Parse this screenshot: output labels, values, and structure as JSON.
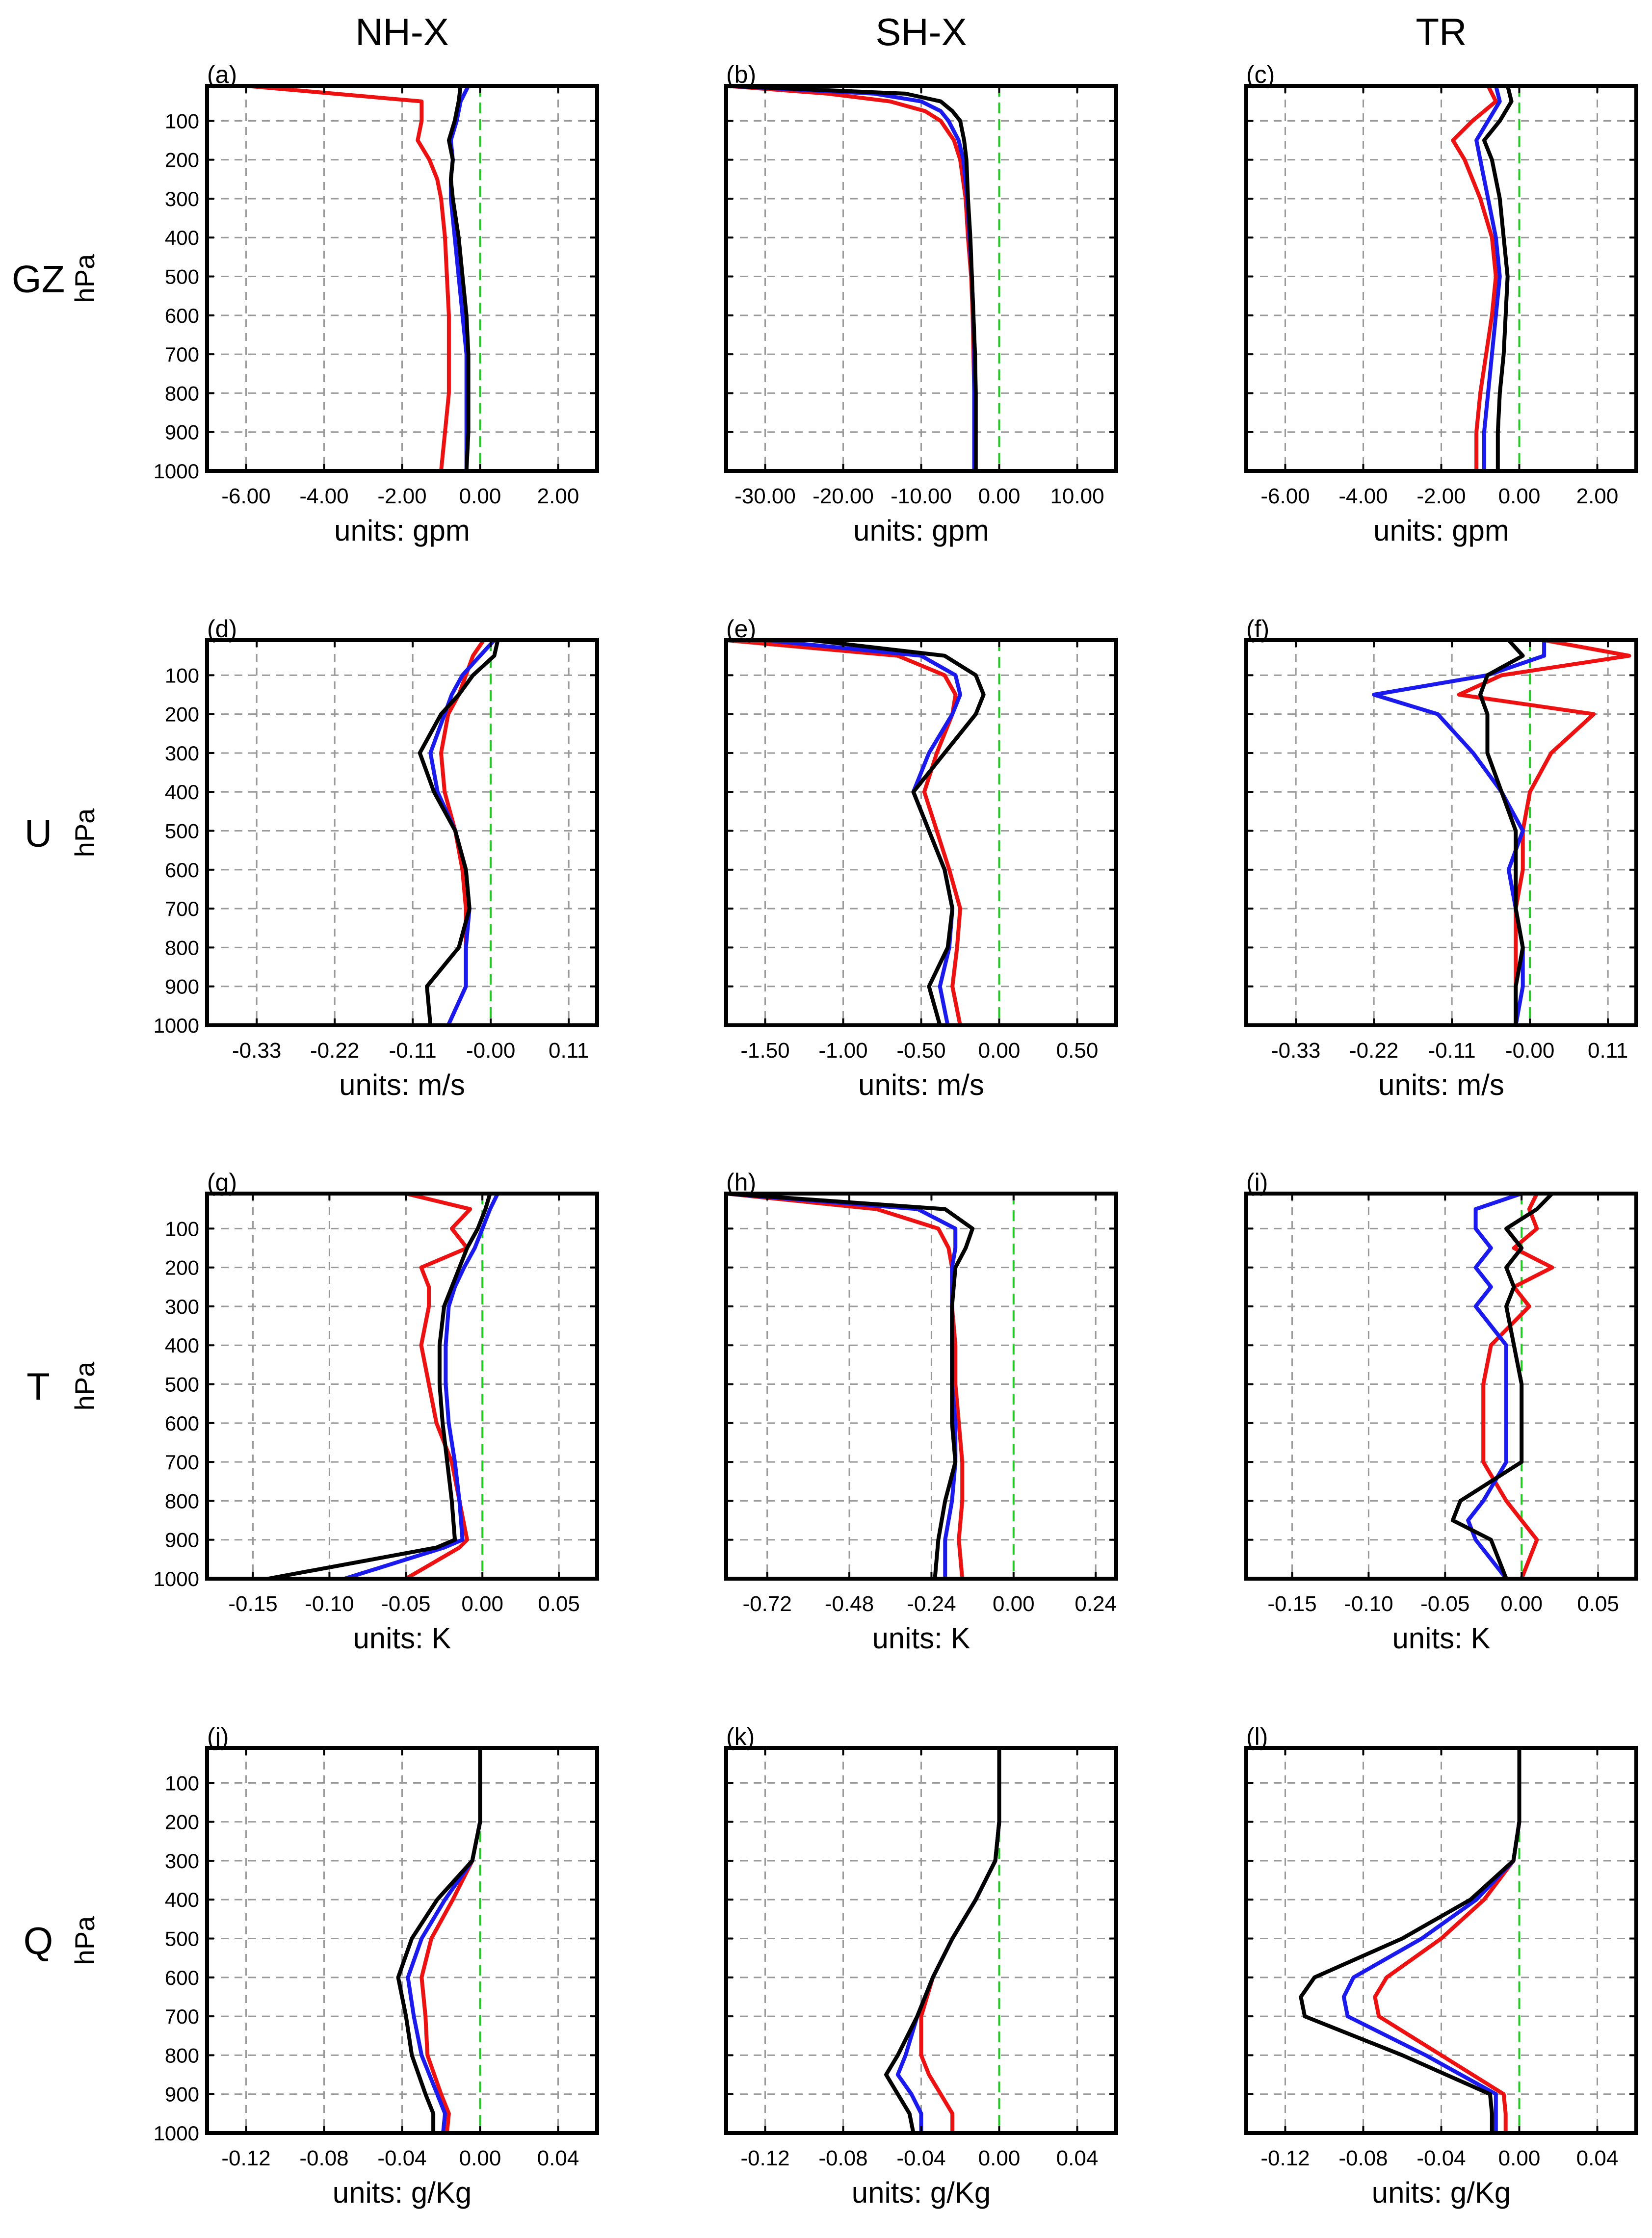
{
  "figure": {
    "columns": [
      "NH-X",
      "SH-X",
      "TR"
    ],
    "rows": [
      "GZ",
      "U",
      "T",
      "Q"
    ],
    "ylabel": "hPa",
    "y_ticks": [
      "100",
      "200",
      "300",
      "400",
      "500",
      "600",
      "700",
      "800",
      "900",
      "1000"
    ]
  },
  "colors": {
    "black": "#000000",
    "red": "#ee1111",
    "blue": "#1a1aee",
    "zero_line": "#22cc22"
  },
  "chart_data": [
    {
      "type": "line",
      "label": "(a)",
      "xlabel": "units: gpm",
      "ylim": [
        1000,
        10
      ],
      "xlim": [
        -7,
        3
      ],
      "xticks": [
        -6,
        -4,
        -2,
        0,
        2
      ],
      "xtick_labels": [
        "-6.00",
        "-4.00",
        "-2.00",
        "0.00",
        "2.00"
      ],
      "p": [
        10,
        50,
        100,
        150,
        200,
        250,
        300,
        400,
        500,
        600,
        700,
        800,
        900,
        1000
      ],
      "series": [
        {
          "name": "black",
          "values": [
            -0.5,
            -0.55,
            -0.65,
            -0.8,
            -0.7,
            -0.75,
            -0.7,
            -0.55,
            -0.45,
            -0.35,
            -0.3,
            -0.3,
            -0.3,
            -0.35
          ]
        },
        {
          "name": "blue",
          "values": [
            -0.3,
            -0.5,
            -0.6,
            -0.75,
            -0.7,
            -0.75,
            -0.75,
            -0.65,
            -0.55,
            -0.45,
            -0.35,
            -0.35,
            -0.35,
            -0.35
          ]
        },
        {
          "name": "red",
          "values": [
            -6.0,
            -1.5,
            -1.5,
            -1.6,
            -1.3,
            -1.1,
            -1.0,
            -0.9,
            -0.85,
            -0.8,
            -0.8,
            -0.8,
            -0.9,
            -1.0
          ]
        }
      ]
    },
    {
      "type": "line",
      "label": "(b)",
      "xlabel": "units: gpm",
      "ylim": [
        1000,
        10
      ],
      "xlim": [
        -35,
        15
      ],
      "xticks": [
        -30,
        -20,
        -10,
        0,
        10
      ],
      "xtick_labels": [
        "-30.00",
        "-20.00",
        "-10.00",
        "0.00",
        "10.00"
      ],
      "p": [
        10,
        30,
        50,
        75,
        100,
        150,
        200,
        300,
        400,
        500,
        600,
        700,
        800,
        900,
        1000
      ],
      "series": [
        {
          "name": "black",
          "values": [
            -35,
            -12,
            -7.5,
            -6,
            -5,
            -4.5,
            -4.2,
            -4.0,
            -3.7,
            -3.5,
            -3.3,
            -3.1,
            -3.0,
            -3.0,
            -3.0
          ]
        },
        {
          "name": "blue",
          "values": [
            -35,
            -16,
            -10,
            -7.5,
            -6.5,
            -5.2,
            -4.6,
            -4.1,
            -3.8,
            -3.5,
            -3.3,
            -3.2,
            -3.2,
            -3.2,
            -3.2
          ]
        },
        {
          "name": "red",
          "values": [
            -35,
            -22,
            -14,
            -9.5,
            -7.5,
            -5.8,
            -5.0,
            -4.3,
            -4.0,
            -3.6,
            -3.4,
            -3.3,
            -3.2,
            -3.2,
            -3.2
          ]
        }
      ]
    },
    {
      "type": "line",
      "label": "(c)",
      "xlabel": "units: gpm",
      "ylim": [
        1000,
        10
      ],
      "xlim": [
        -7,
        3
      ],
      "xticks": [
        -6,
        -4,
        -2,
        0,
        2
      ],
      "xtick_labels": [
        "-6.00",
        "-4.00",
        "-2.00",
        "0.00",
        "2.00"
      ],
      "p": [
        10,
        50,
        100,
        150,
        200,
        300,
        400,
        500,
        600,
        700,
        800,
        900,
        1000
      ],
      "series": [
        {
          "name": "black",
          "values": [
            -0.3,
            -0.2,
            -0.5,
            -0.9,
            -0.7,
            -0.5,
            -0.4,
            -0.3,
            -0.35,
            -0.4,
            -0.5,
            -0.55,
            -0.55
          ]
        },
        {
          "name": "blue",
          "values": [
            -0.6,
            -0.5,
            -0.8,
            -1.1,
            -1.0,
            -0.8,
            -0.6,
            -0.5,
            -0.6,
            -0.7,
            -0.8,
            -0.9,
            -0.9
          ]
        },
        {
          "name": "red",
          "values": [
            -0.8,
            -0.6,
            -1.2,
            -1.7,
            -1.4,
            -1.0,
            -0.7,
            -0.6,
            -0.7,
            -0.85,
            -1.0,
            -1.1,
            -1.1
          ]
        }
      ]
    },
    {
      "type": "line",
      "label": "(d)",
      "xlabel": "units: m/s",
      "ylim": [
        1000,
        10
      ],
      "xlim": [
        -0.4,
        0.15
      ],
      "xticks": [
        -0.33,
        -0.22,
        -0.11,
        0,
        0.11
      ],
      "xtick_labels": [
        "-0.33",
        "-0.22",
        "-0.11",
        "-0.00",
        "0.11"
      ],
      "p": [
        10,
        50,
        100,
        150,
        200,
        300,
        400,
        500,
        600,
        700,
        800,
        900,
        1000
      ],
      "series": [
        {
          "name": "black",
          "values": [
            0.01,
            0.005,
            -0.025,
            -0.045,
            -0.07,
            -0.1,
            -0.08,
            -0.05,
            -0.035,
            -0.03,
            -0.045,
            -0.09,
            -0.085
          ]
        },
        {
          "name": "blue",
          "values": [
            0.005,
            -0.015,
            -0.04,
            -0.055,
            -0.065,
            -0.085,
            -0.075,
            -0.05,
            -0.035,
            -0.03,
            -0.035,
            -0.035,
            -0.06
          ]
        },
        {
          "name": "red",
          "values": [
            -0.01,
            -0.025,
            -0.035,
            -0.045,
            -0.06,
            -0.07,
            -0.065,
            -0.05,
            -0.04,
            -0.035,
            -0.035,
            -0.035,
            -0.06
          ]
        }
      ]
    },
    {
      "type": "line",
      "label": "(e)",
      "xlabel": "units: m/s",
      "ylim": [
        1000,
        10
      ],
      "xlim": [
        -1.75,
        0.75
      ],
      "xticks": [
        -1.5,
        -1.0,
        -0.5,
        0,
        0.5
      ],
      "xtick_labels": [
        "-1.50",
        "-1.00",
        "-0.50",
        "0.00",
        "0.50"
      ],
      "p": [
        10,
        50,
        100,
        150,
        200,
        300,
        400,
        500,
        600,
        700,
        800,
        900,
        1000
      ],
      "series": [
        {
          "name": "black",
          "values": [
            -1.2,
            -0.35,
            -0.15,
            -0.1,
            -0.15,
            -0.35,
            -0.55,
            -0.45,
            -0.35,
            -0.3,
            -0.33,
            -0.45,
            -0.38
          ]
        },
        {
          "name": "blue",
          "values": [
            -1.5,
            -0.5,
            -0.28,
            -0.25,
            -0.3,
            -0.45,
            -0.55,
            -0.45,
            -0.35,
            -0.3,
            -0.32,
            -0.38,
            -0.33
          ]
        },
        {
          "name": "red",
          "values": [
            -1.75,
            -0.65,
            -0.35,
            -0.28,
            -0.3,
            -0.4,
            -0.48,
            -0.4,
            -0.32,
            -0.25,
            -0.27,
            -0.3,
            -0.25
          ]
        }
      ]
    },
    {
      "type": "line",
      "label": "(f)",
      "xlabel": "units: m/s",
      "ylim": [
        1000,
        10
      ],
      "xlim": [
        -0.4,
        0.15
      ],
      "xticks": [
        -0.33,
        -0.22,
        -0.11,
        0,
        0.11
      ],
      "xtick_labels": [
        "-0.33",
        "-0.22",
        "-0.11",
        "-0.00",
        "0.11"
      ],
      "p": [
        10,
        50,
        100,
        150,
        200,
        300,
        400,
        500,
        600,
        700,
        800,
        900,
        1000
      ],
      "series": [
        {
          "name": "black",
          "values": [
            -0.03,
            -0.01,
            -0.06,
            -0.07,
            -0.06,
            -0.06,
            -0.04,
            -0.02,
            -0.02,
            -0.02,
            -0.01,
            -0.02,
            -0.02
          ]
        },
        {
          "name": "blue",
          "values": [
            0.02,
            0.02,
            -0.06,
            -0.22,
            -0.13,
            -0.08,
            -0.04,
            -0.01,
            -0.03,
            -0.02,
            -0.01,
            -0.01,
            -0.02
          ]
        },
        {
          "name": "red",
          "values": [
            0.02,
            0.14,
            -0.04,
            -0.1,
            0.09,
            0.03,
            0.0,
            -0.01,
            -0.01,
            -0.02,
            -0.02,
            -0.02,
            -0.02
          ]
        }
      ]
    },
    {
      "type": "line",
      "label": "(g)",
      "xlabel": "units: K",
      "ylim": [
        1000,
        10
      ],
      "xlim": [
        -0.18,
        0.075
      ],
      "xticks": [
        -0.15,
        -0.1,
        -0.05,
        0,
        0.05
      ],
      "xtick_labels": [
        "-0.15",
        "-0.10",
        "-0.05",
        "0.00",
        "0.05"
      ],
      "p": [
        10,
        50,
        100,
        150,
        200,
        250,
        300,
        400,
        500,
        600,
        700,
        800,
        900,
        920,
        1000
      ],
      "series": [
        {
          "name": "black",
          "values": [
            0.005,
            0.002,
            -0.003,
            -0.01,
            -0.015,
            -0.02,
            -0.025,
            -0.028,
            -0.028,
            -0.026,
            -0.023,
            -0.02,
            -0.018,
            -0.03,
            -0.14
          ]
        },
        {
          "name": "blue",
          "values": [
            0.01,
            0.005,
            0.0,
            -0.005,
            -0.012,
            -0.018,
            -0.022,
            -0.024,
            -0.024,
            -0.022,
            -0.018,
            -0.015,
            -0.013,
            -0.025,
            -0.09
          ]
        },
        {
          "name": "red",
          "values": [
            -0.05,
            -0.008,
            -0.02,
            -0.01,
            -0.04,
            -0.035,
            -0.035,
            -0.04,
            -0.035,
            -0.03,
            -0.02,
            -0.015,
            -0.01,
            -0.015,
            -0.05
          ]
        }
      ]
    },
    {
      "type": "line",
      "label": "(h)",
      "xlabel": "units: K",
      "ylim": [
        1000,
        10
      ],
      "xlim": [
        -0.84,
        0.3
      ],
      "xticks": [
        -0.72,
        -0.48,
        -0.24,
        0,
        0.24
      ],
      "xtick_labels": [
        "-0.72",
        "-0.48",
        "-0.24",
        "0.00",
        "0.24"
      ],
      "p": [
        10,
        50,
        100,
        150,
        200,
        300,
        400,
        500,
        600,
        700,
        800,
        900,
        1000
      ],
      "series": [
        {
          "name": "black",
          "values": [
            -0.84,
            -0.2,
            -0.12,
            -0.14,
            -0.17,
            -0.18,
            -0.18,
            -0.18,
            -0.18,
            -0.17,
            -0.2,
            -0.22,
            -0.23
          ]
        },
        {
          "name": "blue",
          "values": [
            -0.84,
            -0.28,
            -0.17,
            -0.17,
            -0.18,
            -0.18,
            -0.18,
            -0.18,
            -0.17,
            -0.17,
            -0.18,
            -0.2,
            -0.2
          ]
        },
        {
          "name": "red",
          "values": [
            -0.84,
            -0.4,
            -0.22,
            -0.19,
            -0.18,
            -0.18,
            -0.17,
            -0.17,
            -0.16,
            -0.15,
            -0.15,
            -0.16,
            -0.15
          ]
        }
      ]
    },
    {
      "type": "line",
      "label": "(i)",
      "xlabel": "units: K",
      "ylim": [
        1000,
        10
      ],
      "xlim": [
        -0.18,
        0.075
      ],
      "xticks": [
        -0.15,
        -0.1,
        -0.05,
        0,
        0.05
      ],
      "xtick_labels": [
        "-0.15",
        "-0.10",
        "-0.05",
        "0.00",
        "0.05"
      ],
      "p": [
        10,
        50,
        100,
        150,
        200,
        250,
        300,
        400,
        500,
        600,
        700,
        800,
        850,
        900,
        1000
      ],
      "series": [
        {
          "name": "black",
          "values": [
            0.02,
            0.01,
            -0.01,
            0.0,
            -0.01,
            -0.005,
            -0.01,
            -0.005,
            0.0,
            0.0,
            0.0,
            -0.04,
            -0.045,
            -0.02,
            -0.01
          ]
        },
        {
          "name": "blue",
          "values": [
            0.0,
            -0.03,
            -0.03,
            -0.02,
            -0.03,
            -0.02,
            -0.03,
            -0.01,
            -0.01,
            -0.01,
            -0.01,
            -0.025,
            -0.035,
            -0.03,
            -0.01
          ]
        },
        {
          "name": "red",
          "values": [
            0.01,
            0.005,
            0.01,
            -0.005,
            0.02,
            -0.005,
            0.005,
            -0.02,
            -0.025,
            -0.025,
            -0.025,
            -0.01,
            0.0,
            0.01,
            0.0
          ]
        }
      ]
    },
    {
      "type": "line",
      "label": "(j)",
      "xlabel": "units: g/Kg",
      "ylim": [
        1000,
        10
      ],
      "xlim": [
        -0.14,
        0.06
      ],
      "xticks": [
        -0.12,
        -0.08,
        -0.04,
        0,
        0.04
      ],
      "xtick_labels": [
        "-0.12",
        "-0.08",
        "-0.04",
        "0.00",
        "0.04"
      ],
      "p": [
        10,
        200,
        300,
        400,
        500,
        600,
        700,
        800,
        900,
        950,
        1000
      ],
      "series": [
        {
          "name": "black",
          "values": [
            0.0,
            0.0,
            -0.004,
            -0.022,
            -0.035,
            -0.042,
            -0.038,
            -0.035,
            -0.028,
            -0.024,
            -0.024
          ]
        },
        {
          "name": "blue",
          "values": [
            0.0,
            0.0,
            -0.004,
            -0.018,
            -0.03,
            -0.037,
            -0.034,
            -0.03,
            -0.022,
            -0.018,
            -0.019
          ]
        },
        {
          "name": "red",
          "values": [
            0.0,
            0.0,
            -0.004,
            -0.014,
            -0.025,
            -0.03,
            -0.028,
            -0.027,
            -0.02,
            -0.016,
            -0.017
          ]
        }
      ]
    },
    {
      "type": "line",
      "label": "(k)",
      "xlabel": "units: g/Kg",
      "ylim": [
        1000,
        10
      ],
      "xlim": [
        -0.14,
        0.06
      ],
      "xticks": [
        -0.12,
        -0.08,
        -0.04,
        0,
        0.04
      ],
      "xtick_labels": [
        "-0.12",
        "-0.08",
        "-0.04",
        "0.00",
        "0.04"
      ],
      "p": [
        10,
        200,
        300,
        400,
        500,
        600,
        700,
        800,
        850,
        900,
        950,
        1000
      ],
      "series": [
        {
          "name": "black",
          "values": [
            0.0,
            0.0,
            -0.002,
            -0.012,
            -0.024,
            -0.034,
            -0.042,
            -0.052,
            -0.058,
            -0.052,
            -0.046,
            -0.044
          ]
        },
        {
          "name": "blue",
          "values": [
            0.0,
            0.0,
            -0.002,
            -0.012,
            -0.024,
            -0.034,
            -0.042,
            -0.048,
            -0.052,
            -0.045,
            -0.04,
            -0.04
          ]
        },
        {
          "name": "red",
          "values": [
            0.0,
            0.0,
            -0.002,
            -0.012,
            -0.024,
            -0.034,
            -0.04,
            -0.04,
            -0.036,
            -0.03,
            -0.024,
            -0.024
          ]
        }
      ]
    },
    {
      "type": "line",
      "label": "(l)",
      "xlabel": "units: g/Kg",
      "ylim": [
        1000,
        10
      ],
      "xlim": [
        -0.14,
        0.06
      ],
      "xticks": [
        -0.12,
        -0.08,
        -0.04,
        0,
        0.04
      ],
      "xtick_labels": [
        "-0.12",
        "-0.08",
        "-0.04",
        "0.00",
        "0.04"
      ],
      "p": [
        10,
        200,
        300,
        400,
        500,
        600,
        650,
        700,
        800,
        900,
        950,
        1000
      ],
      "series": [
        {
          "name": "black",
          "values": [
            0.0,
            0.0,
            -0.003,
            -0.025,
            -0.06,
            -0.105,
            -0.112,
            -0.11,
            -0.06,
            -0.015,
            -0.014,
            -0.014
          ]
        },
        {
          "name": "blue",
          "values": [
            0.0,
            0.0,
            -0.003,
            -0.022,
            -0.05,
            -0.085,
            -0.09,
            -0.088,
            -0.048,
            -0.012,
            -0.012,
            -0.012
          ]
        },
        {
          "name": "red",
          "values": [
            0.0,
            0.0,
            -0.003,
            -0.018,
            -0.04,
            -0.068,
            -0.074,
            -0.072,
            -0.04,
            -0.008,
            -0.007,
            -0.007
          ]
        }
      ]
    }
  ]
}
